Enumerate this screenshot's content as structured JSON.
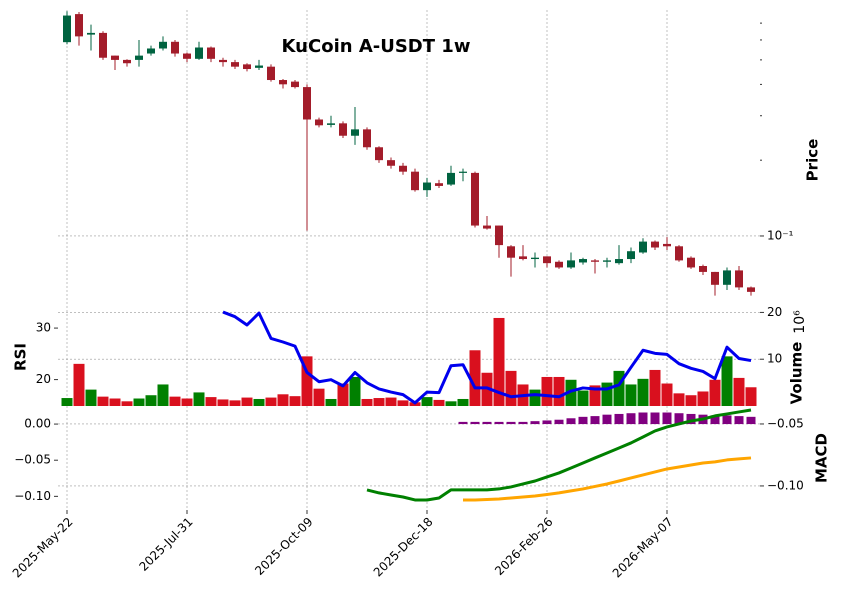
{
  "chart_data": {
    "type": "candlestick",
    "title": "KuCoin A-USDT 1w",
    "grid": true,
    "categories": [
      "2025-May-22",
      null,
      null,
      null,
      null,
      null,
      null,
      null,
      null,
      null,
      "2025-Jul-31",
      null,
      null,
      null,
      null,
      null,
      null,
      null,
      null,
      null,
      "2025-Oct-09",
      null,
      null,
      null,
      null,
      null,
      null,
      null,
      null,
      null,
      "2025-Dec-18",
      null,
      null,
      null,
      null,
      null,
      null,
      null,
      null,
      null,
      "2026-Feb-26",
      null,
      null,
      null,
      null,
      null,
      null,
      null,
      null,
      null,
      "2026-May-07",
      null,
      null,
      null,
      null,
      null,
      null,
      null
    ],
    "price": {
      "label": "Price",
      "log": true,
      "ylim": [
        0.0557,
        0.789
      ],
      "yticks": [
        {
          "value": 0.1,
          "label": "10⁻¹"
        }
      ],
      "yminorticks": [
        0.2,
        0.3,
        0.4,
        0.5,
        0.6,
        0.7
      ],
      "up_color": "#006340",
      "down_color": "#a31c2a",
      "open": [
        0.588,
        0.76,
        0.63,
        0.64,
        0.52,
        0.5,
        0.5,
        0.53,
        0.555,
        0.59,
        0.53,
        0.505,
        0.56,
        0.5,
        0.49,
        0.48,
        0.465,
        0.47,
        0.416,
        0.41,
        0.39,
        0.29,
        0.276,
        0.28,
        0.25,
        0.265,
        0.225,
        0.2,
        0.19,
        0.18,
        0.152,
        0.162,
        0.16,
        0.178,
        0.178,
        0.11,
        0.11,
        0.091,
        0.083,
        0.081,
        0.083,
        0.079,
        0.075,
        0.0785,
        0.08,
        0.079,
        0.078,
        0.081,
        0.086,
        0.095,
        0.093,
        0.091,
        0.082,
        0.076,
        0.072,
        0.064,
        0.073,
        0.0625
      ],
      "high": [
        0.78,
        0.775,
        0.69,
        0.65,
        0.52,
        0.503,
        0.6,
        0.57,
        0.62,
        0.6,
        0.535,
        0.59,
        0.565,
        0.51,
        0.5,
        0.485,
        0.5,
        0.48,
        0.42,
        0.416,
        0.4,
        0.295,
        0.3,
        0.285,
        0.325,
        0.27,
        0.227,
        0.205,
        0.195,
        0.185,
        0.17,
        0.167,
        0.19,
        0.185,
        0.18,
        0.12,
        0.11,
        0.092,
        0.092,
        0.086,
        0.083,
        0.08,
        0.086,
        0.082,
        0.081,
        0.082,
        0.092,
        0.09,
        0.098,
        0.096,
        0.099,
        0.092,
        0.083,
        0.077,
        0.072,
        0.075,
        0.076,
        0.063
      ],
      "low": [
        0.577,
        0.57,
        0.545,
        0.5,
        0.456,
        0.47,
        0.47,
        0.52,
        0.545,
        0.515,
        0.49,
        0.5,
        0.49,
        0.47,
        0.46,
        0.45,
        0.456,
        0.41,
        0.385,
        0.385,
        0.105,
        0.27,
        0.27,
        0.245,
        0.23,
        0.22,
        0.195,
        0.185,
        0.175,
        0.15,
        0.143,
        0.155,
        0.158,
        0.165,
        0.108,
        0.106,
        0.082,
        0.069,
        0.08,
        0.075,
        0.075,
        0.074,
        0.074,
        0.077,
        0.071,
        0.075,
        0.077,
        0.078,
        0.085,
        0.088,
        0.088,
        0.079,
        0.074,
        0.07,
        0.058,
        0.061,
        0.061,
        0.058
      ],
      "close": [
        0.75,
        0.62,
        0.64,
        0.51,
        0.5,
        0.485,
        0.52,
        0.555,
        0.59,
        0.53,
        0.505,
        0.56,
        0.505,
        0.49,
        0.47,
        0.46,
        0.475,
        0.416,
        0.4,
        0.39,
        0.29,
        0.275,
        0.28,
        0.25,
        0.265,
        0.225,
        0.2,
        0.19,
        0.18,
        0.152,
        0.163,
        0.158,
        0.178,
        0.18,
        0.11,
        0.107,
        0.092,
        0.082,
        0.081,
        0.082,
        0.078,
        0.075,
        0.08,
        0.081,
        0.079,
        0.08,
        0.081,
        0.087,
        0.095,
        0.09,
        0.091,
        0.08,
        0.075,
        0.072,
        0.064,
        0.073,
        0.0625,
        0.06
      ]
    },
    "volume": {
      "label": "Volume",
      "scale_label": "10⁶",
      "ylim": [
        0,
        20.5
      ],
      "yticks": [
        10,
        20
      ],
      "up_color": "#008000",
      "down_color": "#d9101e",
      "values": [
        1.7,
        9,
        3.5,
        2,
        1.6,
        1,
        1.6,
        2.3,
        4.6,
        2,
        1.6,
        2.9,
        1.9,
        1.4,
        1.2,
        1.8,
        1.5,
        1.8,
        2.5,
        2.1,
        10.6,
        3.7,
        1.5,
        4.8,
        6.2,
        1.5,
        1.7,
        1.8,
        1.2,
        0.8,
        1.9,
        1.3,
        1,
        1.5,
        11.9,
        7.1,
        18.8,
        7.5,
        4.6,
        3.5,
        6.2,
        6.2,
        5.6,
        3.3,
        4.4,
        5,
        7.5,
        4.6,
        5.8,
        7.7,
        4.8,
        2.7,
        2.3,
        3.1,
        5.6,
        10.6,
        6,
        4
      ]
    },
    "rsi": {
      "label": "RSI",
      "color": "#0000ee",
      "ylim": [
        14.9,
        33.5
      ],
      "yticks": [
        20,
        30
      ],
      "values": [
        null,
        null,
        null,
        null,
        null,
        null,
        null,
        null,
        null,
        null,
        null,
        null,
        null,
        33.1,
        32.2,
        30.6,
        32.9,
        28.0,
        27.3,
        26.5,
        21.4,
        19.6,
        20,
        18.8,
        21.4,
        19.4,
        18.2,
        17.6,
        17.1,
        15.5,
        17.6,
        17.5,
        22.7,
        22.9,
        18.4,
        18.4,
        17.5,
        16.7,
        16.9,
        17.1,
        16.9,
        16.7,
        17.8,
        18.4,
        18.2,
        18.2,
        19,
        22.4,
        25.7,
        25.1,
        24.9,
        23.1,
        22.2,
        21.6,
        20.2,
        26.3,
        24.1,
        23.7
      ]
    },
    "macd": {
      "label": "MACD",
      "ylim": [
        -0.119,
        0.025
      ],
      "yticks": [
        {
          "value": 0,
          "label": "0.00"
        },
        {
          "value": -0.05,
          "label": "−0.05"
        },
        {
          "value": -0.1,
          "label": "−0.10"
        }
      ],
      "y2lim": [
        -0.1194,
        -0.0355
      ],
      "y2ticks": [
        {
          "value": -0.05,
          "label": "−0.05"
        },
        {
          "value": -0.1,
          "label": "−0.10"
        }
      ],
      "histogram": {
        "color": "#800080",
        "values": [
          null,
          null,
          null,
          null,
          null,
          null,
          null,
          null,
          null,
          null,
          null,
          null,
          null,
          null,
          null,
          null,
          null,
          null,
          null,
          null,
          null,
          null,
          null,
          null,
          null,
          null,
          null,
          null,
          null,
          null,
          null,
          null,
          null,
          0.003,
          0.003,
          0.003,
          0.003,
          0.003,
          0.003,
          0.004,
          0.005,
          0.006,
          0.008,
          0.01,
          0.011,
          0.013,
          0.014,
          0.015,
          0.016,
          0.016,
          0.016,
          0.015,
          0.014,
          0.013,
          0.012,
          0.012,
          0.011,
          0.01
        ]
      },
      "series": [
        {
          "color": "#008000",
          "axis": "y2",
          "values": [
            null,
            null,
            null,
            null,
            null,
            null,
            null,
            null,
            null,
            null,
            null,
            null,
            null,
            null,
            null,
            null,
            null,
            null,
            null,
            null,
            null,
            null,
            null,
            null,
            null,
            -0.1032,
            -0.1056,
            -0.1073,
            -0.1089,
            -0.1113,
            -0.1113,
            -0.1097,
            -0.1032,
            -0.1032,
            -0.1032,
            -0.1032,
            -0.1024,
            -0.1008,
            -0.0984,
            -0.096,
            -0.0927,
            -0.0895,
            -0.0855,
            -0.0815,
            -0.0774,
            -0.0734,
            -0.0694,
            -0.0653,
            -0.0605,
            -0.0556,
            -0.0524,
            -0.05,
            -0.0476,
            -0.046,
            -0.0435,
            -0.0419,
            -0.0403,
            -0.0387
          ]
        },
        {
          "color": "#ffa500",
          "axis": "y2",
          "values": [
            null,
            null,
            null,
            null,
            null,
            null,
            null,
            null,
            null,
            null,
            null,
            null,
            null,
            null,
            null,
            null,
            null,
            null,
            null,
            null,
            null,
            null,
            null,
            null,
            null,
            null,
            null,
            null,
            null,
            null,
            null,
            null,
            null,
            -0.1113,
            -0.1113,
            -0.1109,
            -0.1105,
            -0.1097,
            -0.1089,
            -0.1081,
            -0.1069,
            -0.1056,
            -0.104,
            -0.1024,
            -0.1004,
            -0.0984,
            -0.096,
            -0.0935,
            -0.0911,
            -0.0887,
            -0.0863,
            -0.0847,
            -0.0831,
            -0.0815,
            -0.0806,
            -0.079,
            -0.0782,
            -0.0774
          ]
        }
      ]
    }
  }
}
